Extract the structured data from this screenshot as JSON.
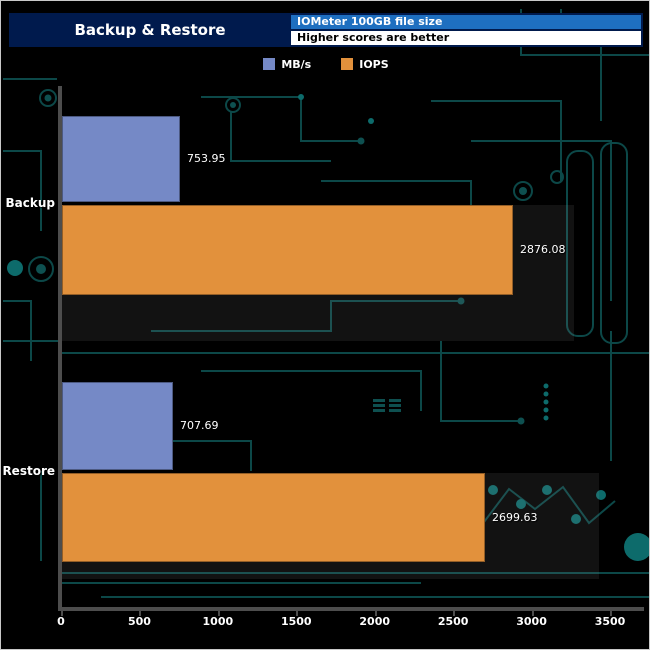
{
  "header": {
    "title": "Backup & Restore",
    "subtitle_top": "IOMeter 100GB file size",
    "subtitle_bottom": "Higher scores are better"
  },
  "colors": {
    "background": "#000000",
    "header_bg": "#001a4d",
    "subtitle_top_bg": "#1e6fc0",
    "subtitle_bottom_bg": "#ffffff",
    "axis": "#4d4d4d",
    "circuit_trace": "#0e5050",
    "bar_mbs": "#7589c6",
    "bar_iops": "#e2913c",
    "text": "#ffffff"
  },
  "chart_data": {
    "type": "bar",
    "orientation": "horizontal",
    "title": "Backup & Restore",
    "subtitle": "IOMeter 100GB file size",
    "note": "Higher scores are better",
    "categories": [
      "Backup",
      "Restore"
    ],
    "series": [
      {
        "name": "MB/s",
        "color": "#7589c6",
        "values": [
          753.95,
          707.69
        ]
      },
      {
        "name": "IOPS",
        "color": "#e2913c",
        "values": [
          2876.08,
          2699.63
        ]
      }
    ],
    "value_labels": [
      [
        "753.95",
        "707.69"
      ],
      [
        "2876.08",
        "2699.63"
      ]
    ],
    "xlim": [
      0,
      3500
    ],
    "xticks": [
      "0",
      "500",
      "1000",
      "1500",
      "2000",
      "2500",
      "3000",
      "3500"
    ],
    "grid": false,
    "legend_position": "top"
  }
}
